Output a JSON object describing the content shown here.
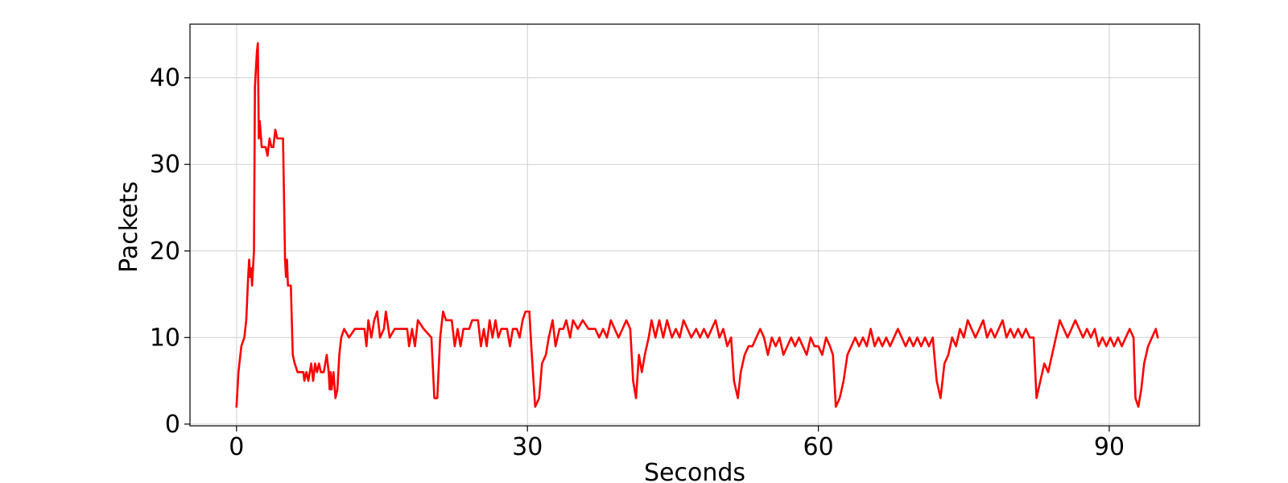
{
  "chart_data": {
    "type": "line",
    "title": "",
    "xlabel": "Seconds",
    "ylabel": "Packets",
    "xlim": [
      -4.8,
      99.3
    ],
    "ylim": [
      -0.2,
      46.2
    ],
    "xticks": [
      0,
      30,
      60,
      90
    ],
    "yticks": [
      0,
      10,
      20,
      30,
      40
    ],
    "grid": true,
    "series": [
      {
        "color": "#ff0000",
        "points": [
          [
            0,
            2
          ],
          [
            0.2,
            6
          ],
          [
            0.5,
            9
          ],
          [
            0.8,
            10
          ],
          [
            1.0,
            12
          ],
          [
            1.2,
            17
          ],
          [
            1.3,
            19
          ],
          [
            1.4,
            17
          ],
          [
            1.5,
            18
          ],
          [
            1.6,
            16
          ],
          [
            1.8,
            20
          ],
          [
            1.9,
            39
          ],
          [
            2.1,
            43
          ],
          [
            2.2,
            44
          ],
          [
            2.3,
            33
          ],
          [
            2.4,
            35
          ],
          [
            2.6,
            32
          ],
          [
            3.0,
            32
          ],
          [
            3.2,
            31
          ],
          [
            3.4,
            33
          ],
          [
            3.6,
            32
          ],
          [
            3.8,
            32
          ],
          [
            4.0,
            34
          ],
          [
            4.2,
            33
          ],
          [
            4.8,
            33
          ],
          [
            5.0,
            19
          ],
          [
            5.1,
            17
          ],
          [
            5.2,
            19
          ],
          [
            5.3,
            16
          ],
          [
            5.6,
            16
          ],
          [
            5.8,
            8
          ],
          [
            6.0,
            7
          ],
          [
            6.3,
            6
          ],
          [
            6.9,
            6
          ],
          [
            7.0,
            5
          ],
          [
            7.2,
            6
          ],
          [
            7.4,
            5
          ],
          [
            7.7,
            7
          ],
          [
            7.9,
            5
          ],
          [
            8.1,
            7
          ],
          [
            8.3,
            6
          ],
          [
            8.5,
            7
          ],
          [
            8.7,
            6
          ],
          [
            9.0,
            6
          ],
          [
            9.3,
            8
          ],
          [
            9.5,
            6
          ],
          [
            9.6,
            4
          ],
          [
            9.7,
            6
          ],
          [
            9.8,
            4
          ],
          [
            10.0,
            6
          ],
          [
            10.2,
            3
          ],
          [
            10.4,
            4
          ],
          [
            10.6,
            8
          ],
          [
            10.8,
            10
          ],
          [
            11.1,
            11
          ],
          [
            11.6,
            10
          ],
          [
            12.2,
            11
          ],
          [
            13.2,
            11
          ],
          [
            13.4,
            9
          ],
          [
            13.6,
            12
          ],
          [
            13.9,
            10
          ],
          [
            14.2,
            12
          ],
          [
            14.5,
            13
          ],
          [
            14.8,
            10
          ],
          [
            15.2,
            11
          ],
          [
            15.4,
            13
          ],
          [
            15.8,
            10
          ],
          [
            16.3,
            11
          ],
          [
            17.6,
            11
          ],
          [
            17.8,
            9
          ],
          [
            18.1,
            11
          ],
          [
            18.4,
            9
          ],
          [
            18.7,
            12
          ],
          [
            19.3,
            11
          ],
          [
            20.1,
            10
          ],
          [
            20.4,
            3
          ],
          [
            20.7,
            3
          ],
          [
            21.0,
            10
          ],
          [
            21.3,
            13
          ],
          [
            21.6,
            12
          ],
          [
            22.2,
            12
          ],
          [
            22.5,
            9
          ],
          [
            22.8,
            11
          ],
          [
            23.1,
            9
          ],
          [
            23.4,
            11
          ],
          [
            24.0,
            11
          ],
          [
            24.3,
            12
          ],
          [
            24.9,
            12
          ],
          [
            25.2,
            9
          ],
          [
            25.5,
            11
          ],
          [
            25.8,
            9
          ],
          [
            26.1,
            12
          ],
          [
            26.4,
            10
          ],
          [
            26.7,
            12
          ],
          [
            27.0,
            10
          ],
          [
            27.3,
            11
          ],
          [
            27.9,
            11
          ],
          [
            28.2,
            9
          ],
          [
            28.5,
            11
          ],
          [
            28.9,
            11
          ],
          [
            29.2,
            10
          ],
          [
            29.5,
            12
          ],
          [
            29.8,
            13
          ],
          [
            30.2,
            13
          ],
          [
            30.4,
            9
          ],
          [
            30.8,
            2
          ],
          [
            31.2,
            3
          ],
          [
            31.5,
            7
          ],
          [
            31.9,
            8
          ],
          [
            32.2,
            10
          ],
          [
            32.6,
            12
          ],
          [
            32.9,
            9
          ],
          [
            33.3,
            11
          ],
          [
            33.7,
            11
          ],
          [
            34.0,
            12
          ],
          [
            34.4,
            10
          ],
          [
            34.7,
            12
          ],
          [
            35.2,
            11
          ],
          [
            35.7,
            12
          ],
          [
            36.3,
            11
          ],
          [
            37.0,
            11
          ],
          [
            37.4,
            10
          ],
          [
            37.8,
            11
          ],
          [
            38.2,
            10
          ],
          [
            38.6,
            12
          ],
          [
            39.0,
            11
          ],
          [
            39.4,
            10
          ],
          [
            39.8,
            11
          ],
          [
            40.2,
            12
          ],
          [
            40.6,
            11
          ],
          [
            40.9,
            5
          ],
          [
            41.2,
            3
          ],
          [
            41.5,
            8
          ],
          [
            41.8,
            6
          ],
          [
            42.1,
            8
          ],
          [
            42.5,
            10
          ],
          [
            42.8,
            12
          ],
          [
            43.2,
            10
          ],
          [
            43.6,
            12
          ],
          [
            44.0,
            10
          ],
          [
            44.4,
            12
          ],
          [
            44.9,
            10
          ],
          [
            45.3,
            11
          ],
          [
            45.7,
            10
          ],
          [
            46.1,
            12
          ],
          [
            46.5,
            11
          ],
          [
            46.9,
            10
          ],
          [
            47.4,
            11
          ],
          [
            47.8,
            10
          ],
          [
            48.2,
            11
          ],
          [
            48.6,
            10
          ],
          [
            49.0,
            11
          ],
          [
            49.4,
            12
          ],
          [
            49.8,
            10
          ],
          [
            50.2,
            11
          ],
          [
            50.6,
            9
          ],
          [
            51.0,
            10
          ],
          [
            51.3,
            5
          ],
          [
            51.7,
            3
          ],
          [
            52.0,
            6
          ],
          [
            52.4,
            8
          ],
          [
            52.8,
            9
          ],
          [
            53.2,
            9
          ],
          [
            53.6,
            10
          ],
          [
            54.0,
            11
          ],
          [
            54.4,
            10
          ],
          [
            54.8,
            8
          ],
          [
            55.2,
            10
          ],
          [
            55.6,
            9
          ],
          [
            56.0,
            10
          ],
          [
            56.4,
            8
          ],
          [
            56.8,
            9
          ],
          [
            57.2,
            10
          ],
          [
            57.6,
            9
          ],
          [
            58.0,
            10
          ],
          [
            58.4,
            9
          ],
          [
            58.8,
            8
          ],
          [
            59.2,
            10
          ],
          [
            59.6,
            9
          ],
          [
            60.0,
            9
          ],
          [
            60.4,
            8
          ],
          [
            60.8,
            10
          ],
          [
            61.2,
            9
          ],
          [
            61.5,
            8
          ],
          [
            61.8,
            2
          ],
          [
            62.2,
            3
          ],
          [
            62.6,
            5
          ],
          [
            63.0,
            8
          ],
          [
            63.4,
            9
          ],
          [
            63.8,
            10
          ],
          [
            64.2,
            9
          ],
          [
            64.6,
            10
          ],
          [
            65.0,
            9
          ],
          [
            65.4,
            11
          ],
          [
            65.8,
            9
          ],
          [
            66.2,
            10
          ],
          [
            66.6,
            9
          ],
          [
            67.0,
            10
          ],
          [
            67.4,
            9
          ],
          [
            67.8,
            10
          ],
          [
            68.2,
            11
          ],
          [
            68.6,
            10
          ],
          [
            69.0,
            9
          ],
          [
            69.4,
            10
          ],
          [
            69.8,
            9
          ],
          [
            70.2,
            10
          ],
          [
            70.6,
            9
          ],
          [
            71.0,
            10
          ],
          [
            71.4,
            9
          ],
          [
            71.8,
            10
          ],
          [
            72.2,
            5
          ],
          [
            72.6,
            3
          ],
          [
            73.0,
            7
          ],
          [
            73.4,
            8
          ],
          [
            73.8,
            10
          ],
          [
            74.2,
            9
          ],
          [
            74.6,
            11
          ],
          [
            75.0,
            10
          ],
          [
            75.4,
            12
          ],
          [
            75.8,
            11
          ],
          [
            76.2,
            10
          ],
          [
            76.6,
            11
          ],
          [
            77.0,
            12
          ],
          [
            77.4,
            10
          ],
          [
            77.8,
            11
          ],
          [
            78.2,
            10
          ],
          [
            78.6,
            11
          ],
          [
            79.0,
            12
          ],
          [
            79.4,
            10
          ],
          [
            79.8,
            11
          ],
          [
            80.2,
            10
          ],
          [
            80.6,
            11
          ],
          [
            81.0,
            10
          ],
          [
            81.4,
            11
          ],
          [
            81.8,
            10
          ],
          [
            82.2,
            10
          ],
          [
            82.5,
            3
          ],
          [
            82.9,
            5
          ],
          [
            83.3,
            7
          ],
          [
            83.7,
            6
          ],
          [
            84.1,
            8
          ],
          [
            84.5,
            10
          ],
          [
            84.9,
            12
          ],
          [
            85.3,
            11
          ],
          [
            85.7,
            10
          ],
          [
            86.1,
            11
          ],
          [
            86.5,
            12
          ],
          [
            86.9,
            11
          ],
          [
            87.3,
            10
          ],
          [
            87.7,
            11
          ],
          [
            88.1,
            10
          ],
          [
            88.5,
            11
          ],
          [
            88.9,
            9
          ],
          [
            89.3,
            10
          ],
          [
            89.7,
            9
          ],
          [
            90.1,
            10
          ],
          [
            90.5,
            9
          ],
          [
            90.9,
            10
          ],
          [
            91.3,
            9
          ],
          [
            91.7,
            10
          ],
          [
            92.1,
            11
          ],
          [
            92.5,
            10
          ],
          [
            92.7,
            3
          ],
          [
            93.0,
            2
          ],
          [
            93.3,
            4
          ],
          [
            93.6,
            7
          ],
          [
            94.0,
            9
          ],
          [
            94.4,
            10
          ],
          [
            94.8,
            11
          ],
          [
            95.0,
            10
          ]
        ]
      }
    ]
  }
}
